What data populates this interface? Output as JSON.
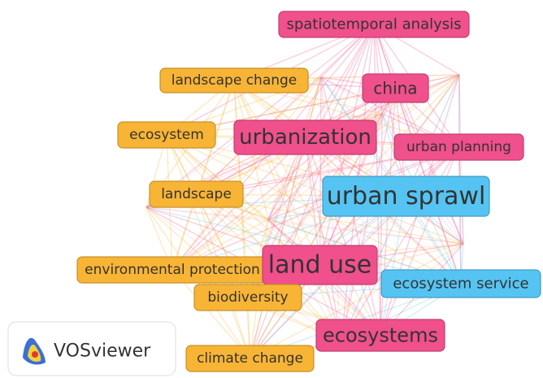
{
  "logo": {
    "text": "VOSviewer"
  },
  "nodes": [
    {
      "label": "spatiotemporal analysis",
      "color": "#f0508c"
    },
    {
      "label": "china",
      "color": "#f0508c"
    },
    {
      "label": "landscape change",
      "color": "#f8b435"
    },
    {
      "label": "ecosystem",
      "color": "#f8b435"
    },
    {
      "label": "urbanization",
      "color": "#f0508c"
    },
    {
      "label": "urban planning",
      "color": "#f0508c"
    },
    {
      "label": "landscape",
      "color": "#f8b435"
    },
    {
      "label": "urban sprawl",
      "color": "#55c4f2"
    },
    {
      "label": "environmental protection",
      "color": "#f8b435"
    },
    {
      "label": "land use",
      "color": "#f0508c"
    },
    {
      "label": "ecosystem service",
      "color": "#55c4f2"
    },
    {
      "label": "biodiversity",
      "color": "#f8b435"
    },
    {
      "label": "ecosystems",
      "color": "#f0508c"
    },
    {
      "label": "climate change",
      "color": "#f8b435"
    }
  ]
}
